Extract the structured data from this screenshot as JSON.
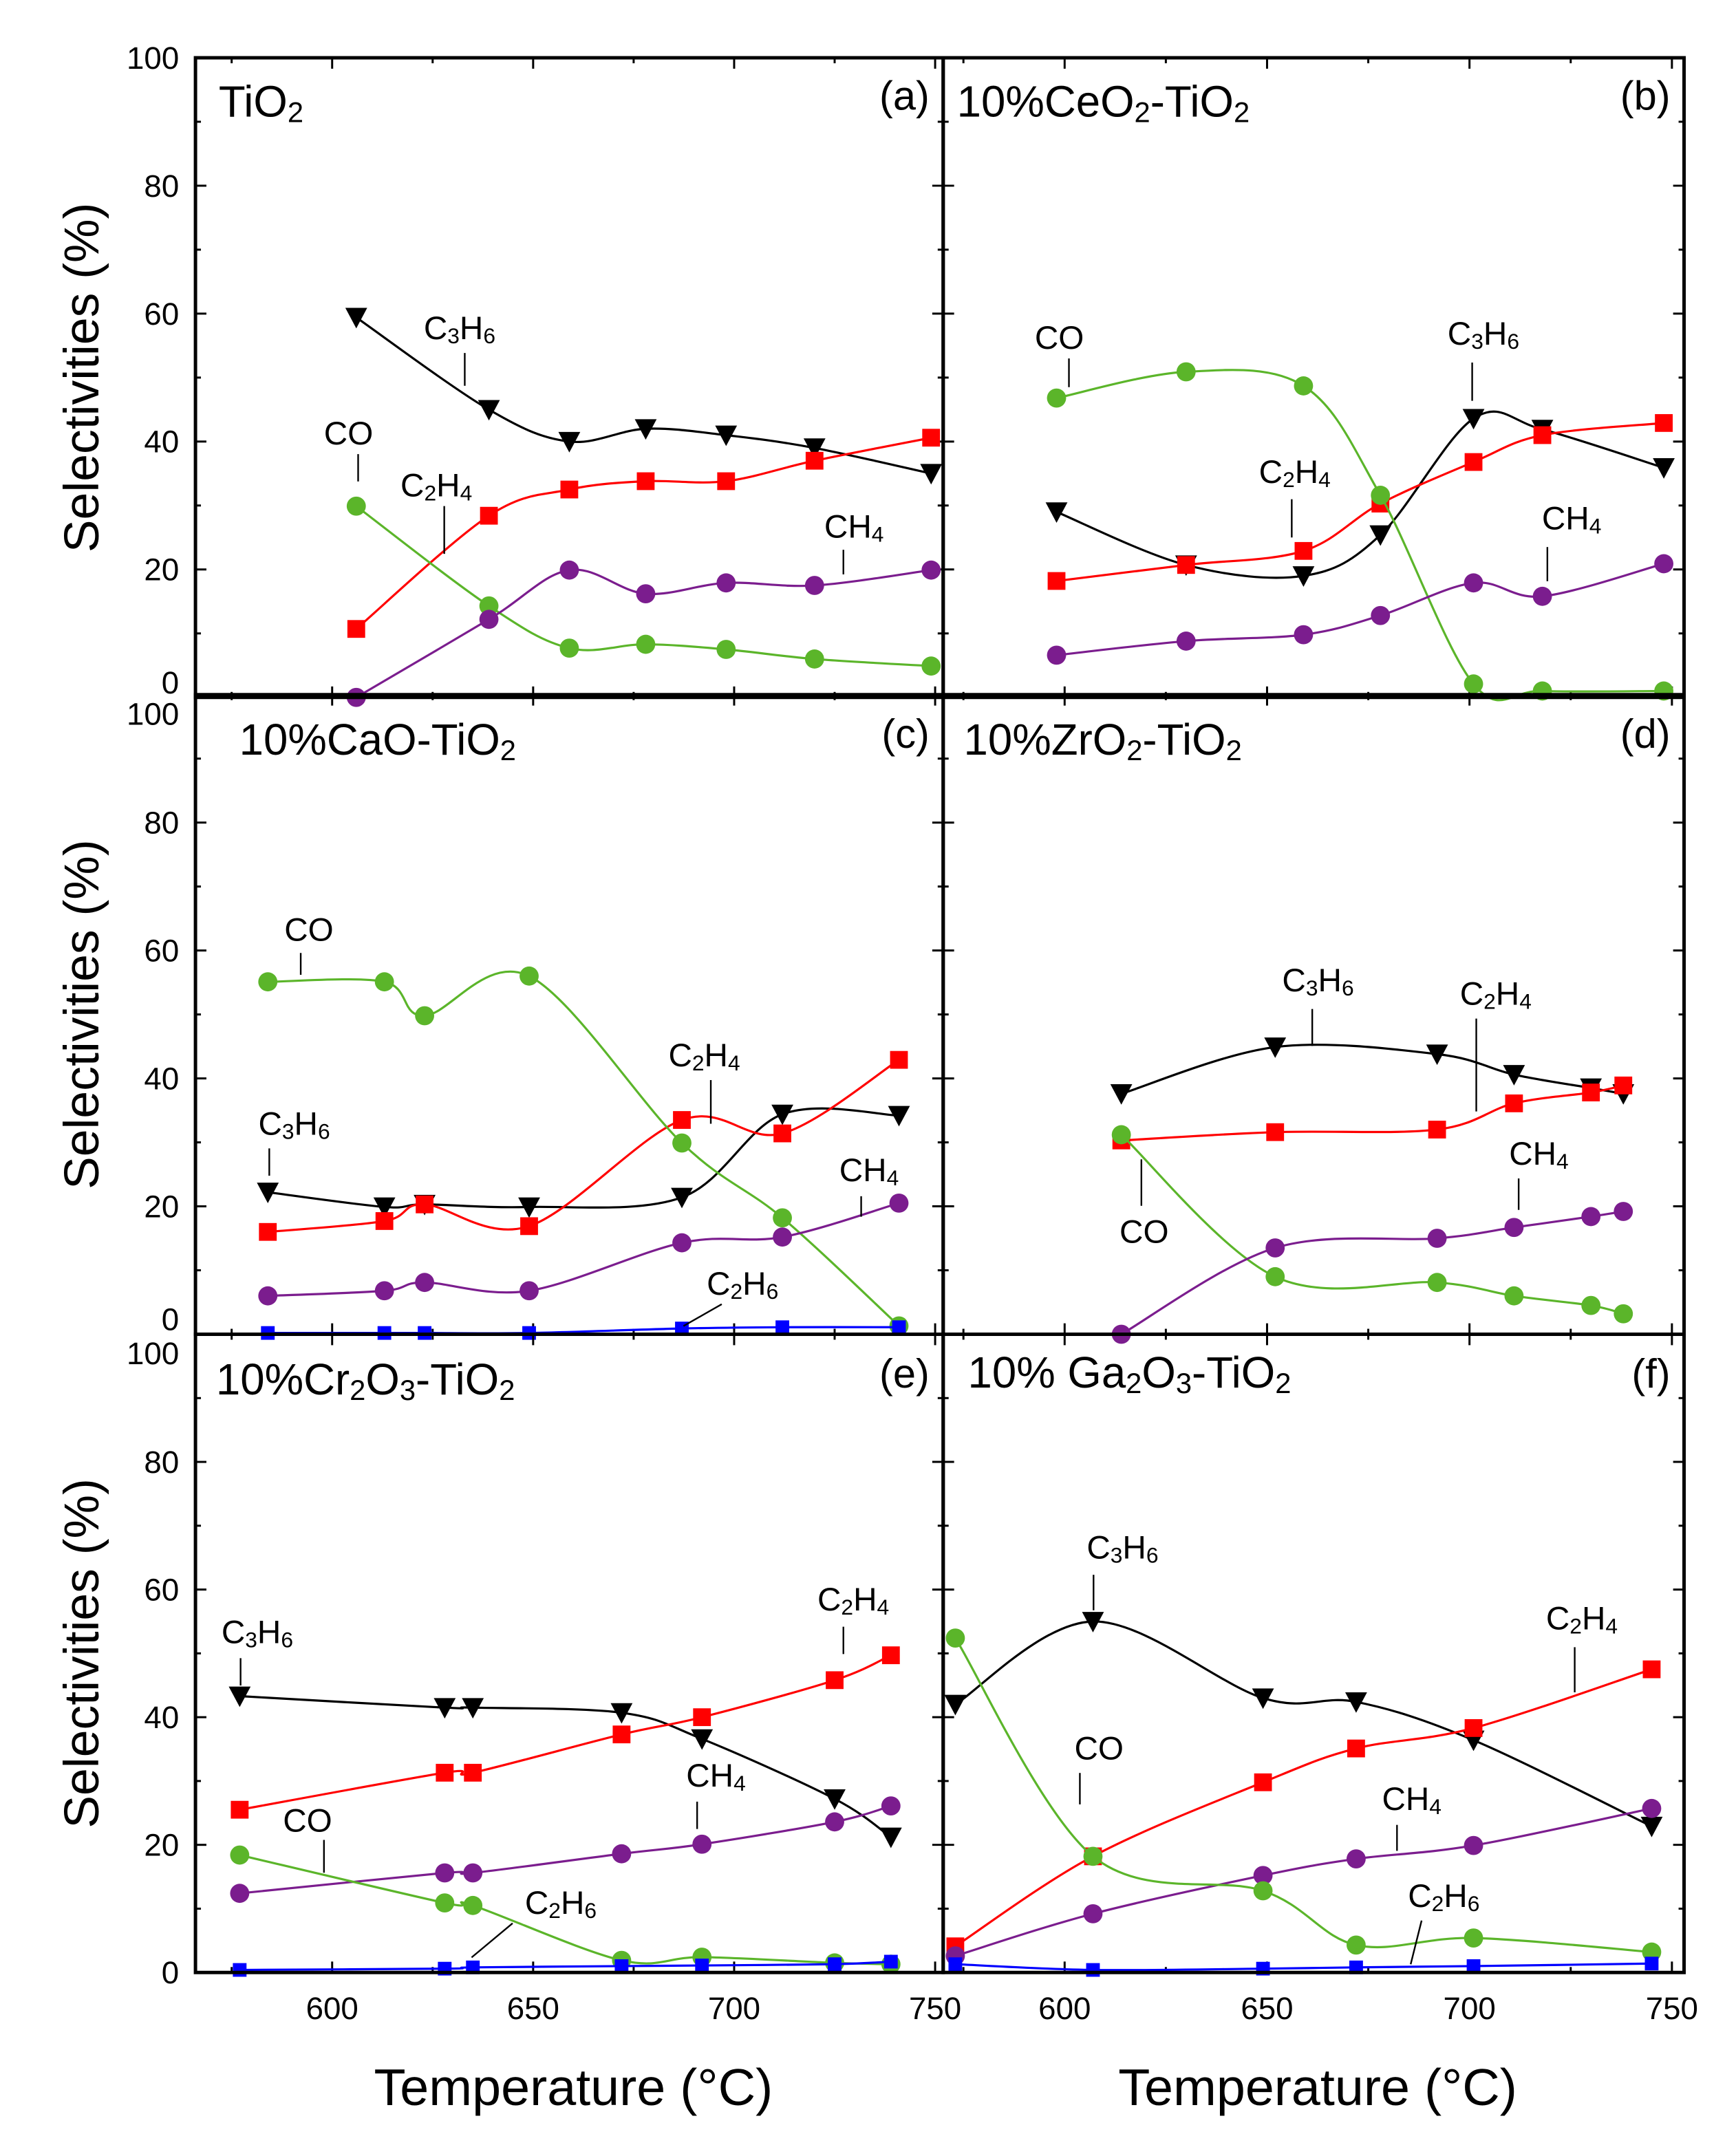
{
  "colors": {
    "C3H6": "#000000",
    "C2H4": "#ff0000",
    "CO": "#5bb52a",
    "CH4": "#7b1d8e",
    "C2H6": "#0000ff"
  },
  "chart_data": [
    {
      "type": "line",
      "panel": "a",
      "title": "TiO2",
      "letter": "(a)",
      "ylabel": "Selectivities (%)",
      "xlabel": "",
      "xlim": [
        566,
        752
      ],
      "ylim": [
        0,
        100
      ],
      "xticks": [
        600,
        650,
        700,
        750
      ],
      "yticks": [
        0,
        20,
        40,
        60,
        80,
        100
      ],
      "show_x_ticklabels": false,
      "series": [
        {
          "name": "C3H6",
          "marker": "triangle-down",
          "x": [
            606,
            639,
            659,
            678,
            698,
            720,
            749
          ],
          "y": [
            59.4,
            45,
            40,
            42,
            41,
            39,
            35
          ]
        },
        {
          "name": "C2H4",
          "marker": "square",
          "x": [
            606,
            639,
            659,
            678,
            698,
            720,
            749
          ],
          "y": [
            10.7,
            28.4,
            32.5,
            33.8,
            33.8,
            37,
            40.6
          ]
        },
        {
          "name": "CO",
          "marker": "circle",
          "x": [
            606,
            639,
            659,
            678,
            698,
            720,
            749
          ],
          "y": [
            29.9,
            14.3,
            7.7,
            8.3,
            7.5,
            6,
            4.9
          ]
        },
        {
          "name": "CH4",
          "marker": "circle",
          "x": [
            606,
            639,
            659,
            678,
            698,
            720,
            749
          ],
          "y": [
            0,
            12.2,
            19.9,
            16.2,
            17.9,
            17.5,
            19.9
          ]
        }
      ],
      "annotations": [
        "C3H6",
        "CO",
        "C2H4",
        "CH4"
      ]
    },
    {
      "type": "line",
      "panel": "b",
      "title": "10%CeO2-TiO2",
      "letter": "(b)",
      "ylabel": "",
      "xlabel": "",
      "xlim": [
        570,
        753
      ],
      "ylim": [
        0,
        100
      ],
      "xticks": [
        600,
        650,
        700,
        750
      ],
      "yticks": [
        0,
        20,
        40,
        60,
        80,
        100
      ],
      "show_x_ticklabels": false,
      "series": [
        {
          "name": "C3H6",
          "marker": "triangle-down",
          "x": [
            598,
            630,
            659,
            678,
            701,
            718,
            748
          ],
          "y": [
            29,
            20.7,
            19,
            25.4,
            43.6,
            41.9,
            35.9
          ]
        },
        {
          "name": "C2H4",
          "marker": "square",
          "x": [
            598,
            630,
            659,
            678,
            701,
            718,
            748
          ],
          "y": [
            18.2,
            20.7,
            22.9,
            30.3,
            36.8,
            41,
            42.9
          ]
        },
        {
          "name": "CO",
          "marker": "circle",
          "x": [
            598,
            630,
            659,
            678,
            701,
            718,
            748
          ],
          "y": [
            46.8,
            50.9,
            48.7,
            31.6,
            2.1,
            1,
            1
          ]
        },
        {
          "name": "CH4",
          "marker": "circle",
          "x": [
            598,
            630,
            659,
            678,
            701,
            718,
            748
          ],
          "y": [
            6.6,
            8.8,
            9.8,
            12.8,
            17.9,
            15.8,
            20.9
          ]
        }
      ],
      "annotations": [
        "CO",
        "C2H4",
        "C3H6",
        "CH4"
      ]
    },
    {
      "type": "line",
      "panel": "c",
      "title": "10%CaO-TiO2",
      "letter": "(c)",
      "ylabel": "Selectivities (%)",
      "xlabel": "",
      "xlim": [
        566,
        752
      ],
      "ylim": [
        0,
        100
      ],
      "xticks": [
        600,
        650,
        700,
        750
      ],
      "yticks": [
        0,
        20,
        40,
        60,
        80,
        100
      ],
      "show_x_ticklabels": false,
      "series": [
        {
          "name": "C3H6",
          "marker": "triangle-down",
          "x": [
            584,
            613,
            623,
            649,
            687,
            712,
            741
          ],
          "y": [
            22.2,
            19.9,
            20.3,
            19.9,
            21.4,
            34.4,
            34.2
          ]
        },
        {
          "name": "C2H4",
          "marker": "square",
          "x": [
            584,
            613,
            623,
            649,
            687,
            712,
            741
          ],
          "y": [
            16,
            17.7,
            20.3,
            16.9,
            33.5,
            31.4,
            42.9
          ]
        },
        {
          "name": "CO",
          "marker": "circle",
          "x": [
            584,
            613,
            623,
            649,
            687,
            712,
            741
          ],
          "y": [
            55.1,
            55.1,
            49.8,
            56,
            29.9,
            18.2,
            1.3
          ]
        },
        {
          "name": "CH4",
          "marker": "circle",
          "x": [
            584,
            613,
            623,
            649,
            687,
            712,
            741
          ],
          "y": [
            6,
            6.8,
            8.1,
            6.8,
            14.3,
            15.2,
            20.5
          ]
        },
        {
          "name": "C2H6",
          "marker": "square-small",
          "x": [
            584,
            613,
            623,
            649,
            687,
            712,
            741
          ],
          "y": [
            0.2,
            0.2,
            0.2,
            0.2,
            0.9,
            1.1,
            1.1
          ]
        }
      ],
      "annotations": [
        "CO",
        "C2H4",
        "C3H6",
        "CH4",
        "C2H6"
      ]
    },
    {
      "type": "line",
      "panel": "d",
      "title": "10%ZrO2-TiO2",
      "letter": "(d)",
      "ylabel": "",
      "xlabel": "",
      "xlim": [
        570,
        753
      ],
      "ylim": [
        0,
        100
      ],
      "xticks": [
        600,
        650,
        700,
        750
      ],
      "yticks": [
        0,
        20,
        40,
        60,
        80,
        100
      ],
      "show_x_ticklabels": false,
      "series": [
        {
          "name": "C3H6",
          "marker": "triangle-down",
          "x": [
            614,
            652,
            692,
            711,
            730,
            738
          ],
          "y": [
            37.6,
            44.9,
            43.8,
            40.6,
            38.5,
            37.6
          ]
        },
        {
          "name": "C2H4",
          "marker": "square",
          "x": [
            614,
            652,
            692,
            711,
            730,
            738
          ],
          "y": [
            30.3,
            31.6,
            32,
            36.1,
            37.8,
            38.9
          ]
        },
        {
          "name": "CO",
          "marker": "circle",
          "x": [
            614,
            652,
            692,
            711,
            730,
            738
          ],
          "y": [
            31.2,
            9,
            8.1,
            6,
            4.5,
            3.2
          ]
        },
        {
          "name": "CH4",
          "marker": "circle",
          "x": [
            614,
            652,
            692,
            711,
            730,
            738
          ],
          "y": [
            0,
            13.5,
            15,
            16.7,
            18.4,
            19.2
          ]
        }
      ],
      "annotations": [
        "C3H6",
        "C2H4",
        "CH4",
        "CO"
      ]
    },
    {
      "type": "line",
      "panel": "e",
      "title": "10%Cr2O3-TiO2",
      "letter": "(e)",
      "ylabel": "Selectivities (%)",
      "xlabel": "Temperature (°C)",
      "xlim": [
        566,
        752
      ],
      "ylim": [
        0,
        100
      ],
      "xticks": [
        600,
        650,
        700,
        750
      ],
      "yticks": [
        0,
        20,
        40,
        60,
        80,
        100
      ],
      "show_x_ticklabels": true,
      "series": [
        {
          "name": "C3H6",
          "marker": "triangle-down",
          "x": [
            577,
            628,
            635,
            672,
            692,
            725,
            739
          ],
          "y": [
            43.3,
            41.5,
            41.5,
            40.7,
            36.6,
            27.2,
            21.2
          ]
        },
        {
          "name": "C2H4",
          "marker": "square",
          "x": [
            577,
            628,
            635,
            672,
            692,
            725,
            739
          ],
          "y": [
            25.5,
            31.3,
            31.3,
            37.3,
            40,
            45.8,
            49.7
          ]
        },
        {
          "name": "CH4",
          "marker": "circle",
          "x": [
            577,
            628,
            635,
            672,
            692,
            725,
            739
          ],
          "y": [
            12.4,
            15.6,
            15.6,
            18.6,
            20.1,
            23.6,
            26.1
          ]
        },
        {
          "name": "CO",
          "marker": "circle",
          "x": [
            577,
            628,
            635,
            672,
            692,
            725,
            739
          ],
          "y": [
            18.4,
            10.9,
            10.5,
            1.9,
            2.4,
            1.5,
            1.3
          ]
        },
        {
          "name": "C2H6",
          "marker": "square-small",
          "x": [
            577,
            628,
            635,
            672,
            692,
            725,
            739
          ],
          "y": [
            0.4,
            0.6,
            0.8,
            1.0,
            1.1,
            1.3,
            1.7
          ]
        }
      ],
      "annotations": [
        "C3H6",
        "C2H4",
        "CH4",
        "CO",
        "C2H6"
      ]
    },
    {
      "type": "line",
      "panel": "f",
      "title": "10% Ga2O3-TiO2",
      "letter": "(f)",
      "ylabel": "",
      "xlabel": "Temperature (°C)",
      "xlim": [
        570,
        753
      ],
      "ylim": [
        0,
        100
      ],
      "xticks": [
        600,
        650,
        700,
        750
      ],
      "yticks": [
        0,
        20,
        40,
        60,
        80,
        100
      ],
      "show_x_ticklabels": true,
      "series": [
        {
          "name": "C3H6",
          "marker": "triangle-down",
          "x": [
            573,
            607,
            649,
            672,
            701,
            745
          ],
          "y": [
            42,
            55,
            43,
            42.4,
            36.4,
            22.9
          ]
        },
        {
          "name": "C2H4",
          "marker": "square",
          "x": [
            573,
            607,
            649,
            672,
            701,
            745
          ],
          "y": [
            4.1,
            18.2,
            29.8,
            35.1,
            38.3,
            47.5
          ]
        },
        {
          "name": "CH4",
          "marker": "circle",
          "x": [
            573,
            607,
            649,
            672,
            701,
            745
          ],
          "y": [
            2.6,
            9.2,
            15.2,
            17.8,
            19.9,
            25.7
          ]
        },
        {
          "name": "CO",
          "marker": "circle",
          "x": [
            573,
            607,
            649,
            672,
            701,
            745
          ],
          "y": [
            52.4,
            18.2,
            12.8,
            4.3,
            5.4,
            3.2
          ]
        },
        {
          "name": "C2H6",
          "marker": "square-small",
          "x": [
            573,
            607,
            649,
            672,
            701,
            745
          ],
          "y": [
            1.3,
            0.4,
            0.6,
            0.8,
            1.0,
            1.4
          ]
        }
      ],
      "annotations": [
        "C3H6",
        "C2H4",
        "CO",
        "CH4",
        "C2H6"
      ]
    }
  ]
}
